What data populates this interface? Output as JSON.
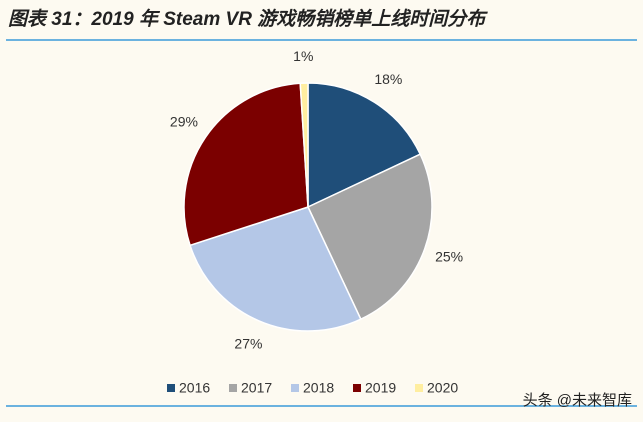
{
  "chart_data": {
    "type": "pie",
    "title": "图表 31：2019 年 Steam VR 游戏畅销榜单上线时间分布",
    "categories": [
      "2016",
      "2017",
      "2018",
      "2019",
      "2020"
    ],
    "values": [
      18,
      25,
      27,
      29,
      1
    ],
    "value_labels": [
      "18%",
      "25%",
      "27%",
      "29%",
      "1%"
    ],
    "colors": [
      "#1f4e79",
      "#a5a5a5",
      "#b4c7e7",
      "#7b0000",
      "#ffeea0"
    ],
    "legend": "bottom"
  },
  "watermark": "头条 @未来智库"
}
